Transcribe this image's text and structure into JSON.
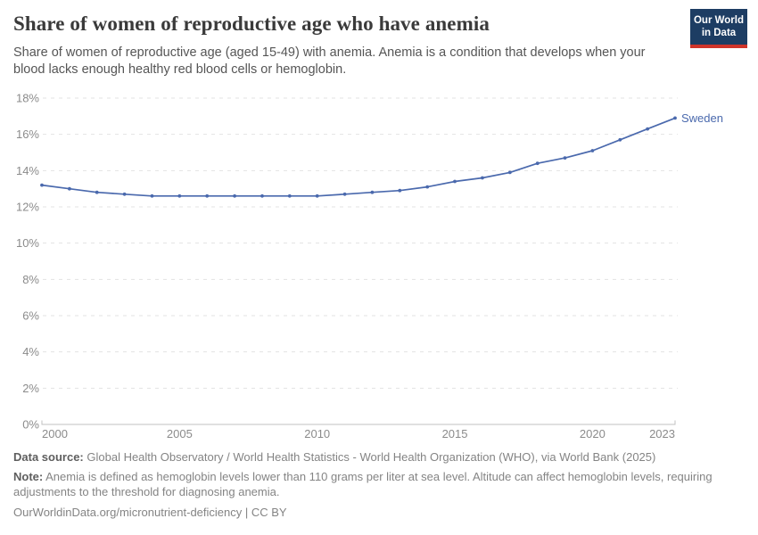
{
  "header": {
    "title": "Share of women of reproductive age who have anemia",
    "subtitle": "Share of women of reproductive age (aged 15-49) with anemia. Anemia is a condition that develops when your blood lacks enough healthy red blood cells or hemoglobin.",
    "logo": {
      "line1": "Our World",
      "line2": "in Data",
      "bg_color": "#1d3d63",
      "accent_color": "#cf342a"
    }
  },
  "chart_data": {
    "type": "line",
    "title": "Share of women of reproductive age who have anemia",
    "xlabel": "",
    "ylabel": "",
    "grid": true,
    "xlim": [
      2000,
      2023
    ],
    "ylim": [
      0,
      18
    ],
    "x_ticks": [
      2000,
      2005,
      2010,
      2015,
      2020,
      2023
    ],
    "y_ticks": [
      0,
      2,
      4,
      6,
      8,
      10,
      12,
      14,
      16,
      18
    ],
    "y_tick_suffix": "%",
    "legend_position": "line-end-label",
    "series": [
      {
        "name": "Sweden",
        "color": "#4a69ad",
        "x": [
          2000,
          2001,
          2002,
          2003,
          2004,
          2005,
          2006,
          2007,
          2008,
          2009,
          2010,
          2011,
          2012,
          2013,
          2014,
          2015,
          2016,
          2017,
          2018,
          2019,
          2020,
          2021,
          2022,
          2023
        ],
        "values": [
          13.2,
          13.0,
          12.8,
          12.7,
          12.6,
          12.6,
          12.6,
          12.6,
          12.6,
          12.6,
          12.6,
          12.7,
          12.8,
          12.9,
          13.1,
          13.4,
          13.6,
          13.9,
          14.4,
          14.7,
          15.1,
          15.7,
          16.3,
          16.9
        ]
      }
    ]
  },
  "footer": {
    "data_source_label": "Data source:",
    "data_source": "Global Health Observatory / World Health Statistics - World Health Organization (WHO), via World Bank (2025)",
    "note_label": "Note:",
    "note": "Anemia is defined as hemoglobin levels lower than 110 grams per liter at sea level. Altitude can affect hemoglobin levels, requiring adjustments to the threshold for diagnosing anemia.",
    "link": "OurWorldinData.org/micronutrient-deficiency | CC BY"
  }
}
